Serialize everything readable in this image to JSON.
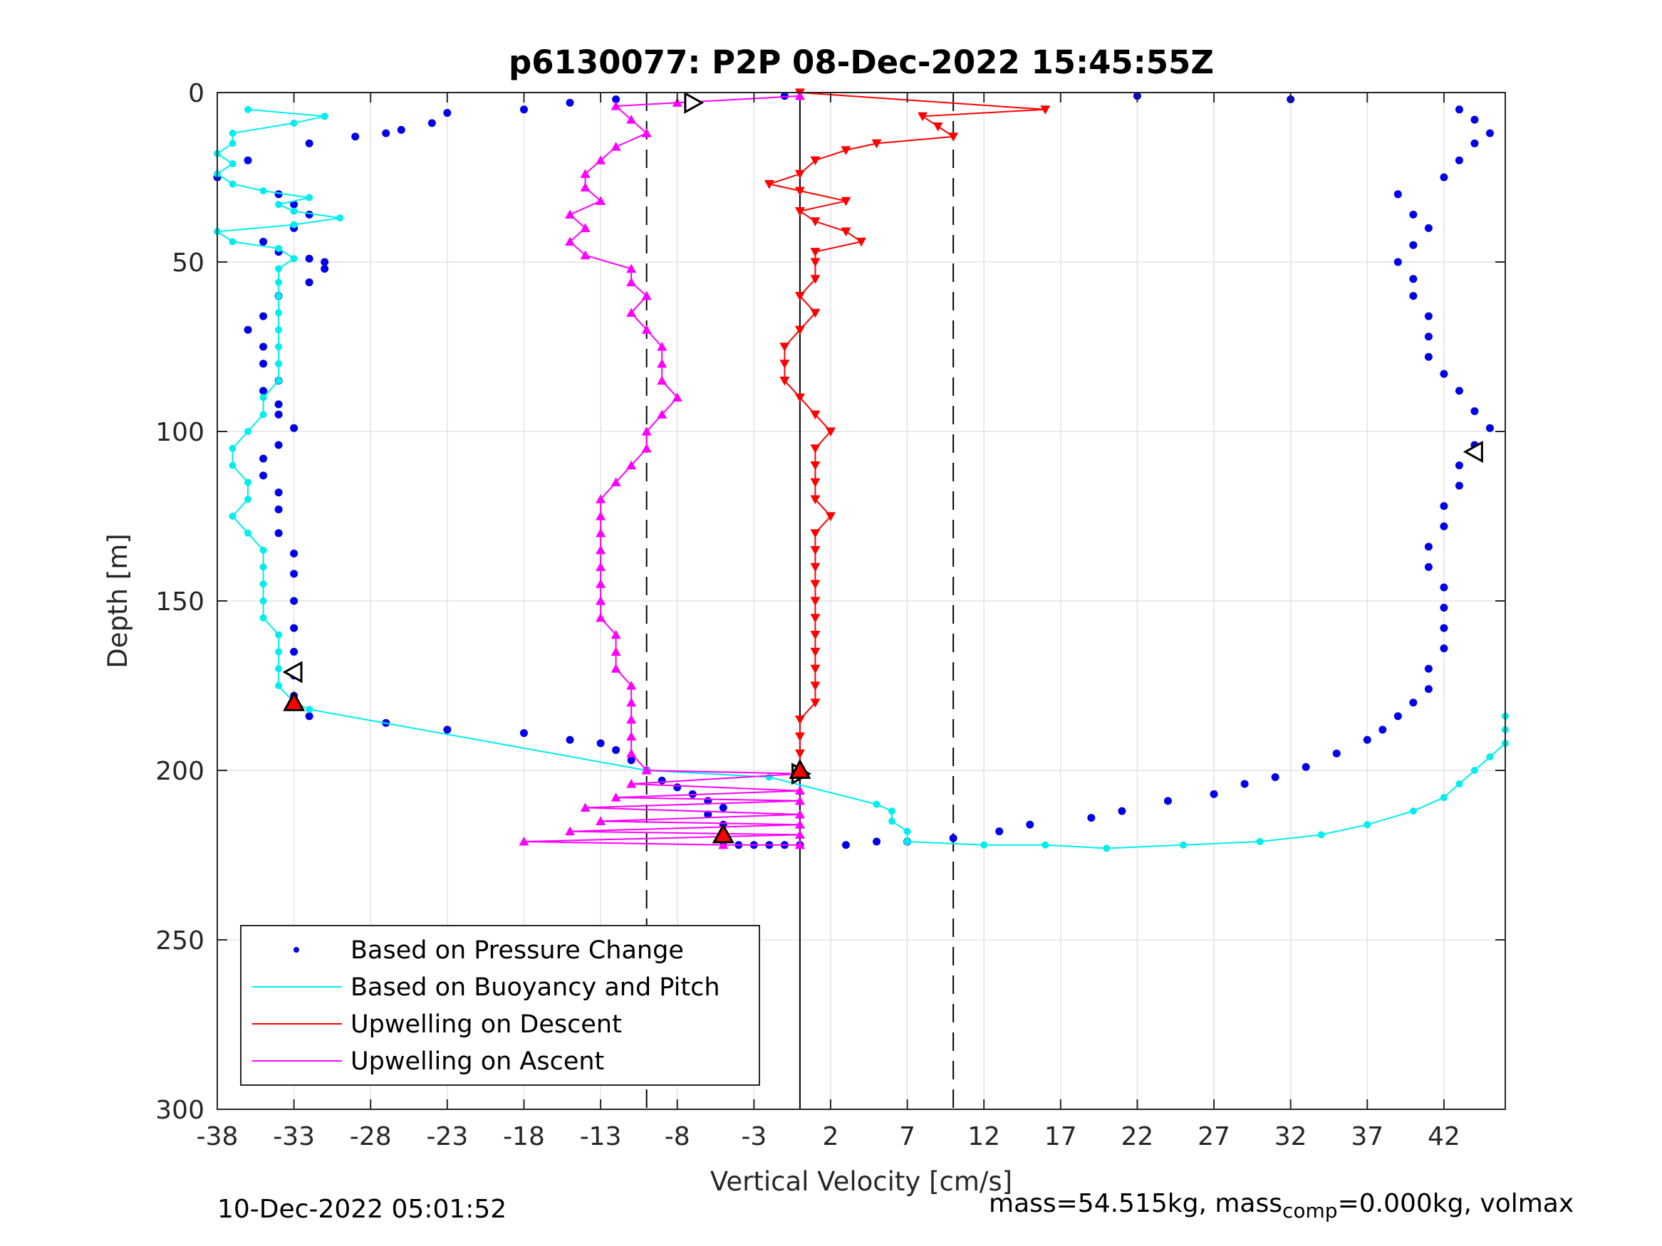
{
  "chart_data": {
    "type": "scatter",
    "title": "p6130077: P2P 08-Dec-2022 15:45:55Z",
    "xlabel": "Vertical Velocity [cm/s]",
    "ylabel": "Depth [m]",
    "xlim": [
      -38,
      46
    ],
    "ylim": [
      0,
      300
    ],
    "y_reversed": true,
    "grid": true,
    "xticks": [
      -38,
      -33,
      -28,
      -23,
      -18,
      -13,
      -8,
      -3,
      2,
      7,
      12,
      17,
      22,
      27,
      32,
      37,
      42
    ],
    "yticks": [
      0,
      50,
      100,
      150,
      200,
      250,
      300
    ],
    "reference_lines": {
      "solid_x": 0,
      "dashed_x": [
        -10,
        10
      ]
    },
    "legend": {
      "placement": "lower-left",
      "entries": [
        "Based on Pressure Change",
        "Based on Buoyancy and Pitch",
        "Upwelling on Descent",
        "Upwelling on Ascent"
      ]
    },
    "colors": {
      "pressure": "#0000e6",
      "buoyancy": "#00eeee",
      "descent": "#ff0000",
      "ascent": "#ff00ff"
    },
    "series": [
      {
        "key": "pressure",
        "style": "dots",
        "points": [
          [
            -15,
            3
          ],
          [
            -18,
            5
          ],
          [
            -23,
            6
          ],
          [
            -24,
            9
          ],
          [
            -26,
            11
          ],
          [
            -27,
            12
          ],
          [
            -29,
            13
          ],
          [
            -32,
            15
          ],
          [
            -36,
            20
          ],
          [
            -38,
            25
          ],
          [
            -34,
            30
          ],
          [
            -33,
            33
          ],
          [
            -32,
            36
          ],
          [
            -33,
            40
          ],
          [
            -35,
            44
          ],
          [
            -34,
            47
          ],
          [
            -32,
            49
          ],
          [
            -31,
            50
          ],
          [
            -31,
            52
          ],
          [
            -32,
            56
          ],
          [
            -34,
            60
          ],
          [
            -35,
            66
          ],
          [
            -36,
            70
          ],
          [
            -35,
            75
          ],
          [
            -35,
            80
          ],
          [
            -34,
            85
          ],
          [
            -35,
            88
          ],
          [
            -34,
            92
          ],
          [
            -34,
            95
          ],
          [
            -33,
            99
          ],
          [
            -34,
            104
          ],
          [
            -35,
            108
          ],
          [
            -35,
            113
          ],
          [
            -34,
            118
          ],
          [
            -34,
            123
          ],
          [
            -34,
            130
          ],
          [
            -33,
            136
          ],
          [
            -33,
            142
          ],
          [
            -33,
            150
          ],
          [
            -33,
            158
          ],
          [
            -33,
            165
          ],
          [
            -33,
            172
          ],
          [
            -33,
            178
          ],
          [
            -32,
            184
          ],
          [
            -27,
            186
          ],
          [
            -23,
            188
          ],
          [
            -18,
            189
          ],
          [
            -15,
            191
          ],
          [
            -13,
            192
          ],
          [
            -12,
            194
          ],
          [
            -11,
            197
          ],
          [
            -10,
            200
          ],
          [
            -9,
            203
          ],
          [
            -8,
            205
          ],
          [
            -7,
            207
          ],
          [
            -6,
            209
          ],
          [
            -5,
            211
          ],
          [
            -6,
            213
          ],
          [
            -5,
            216
          ],
          [
            -5,
            219
          ],
          [
            -5,
            221
          ],
          [
            -4,
            222
          ],
          [
            -3,
            222
          ],
          [
            -2,
            222
          ],
          [
            -1,
            222
          ],
          [
            0,
            222
          ],
          [
            3,
            222
          ],
          [
            5,
            221
          ],
          [
            7,
            221
          ],
          [
            10,
            220
          ],
          [
            13,
            218
          ],
          [
            15,
            216
          ],
          [
            19,
            214
          ],
          [
            21,
            212
          ],
          [
            24,
            209
          ],
          [
            27,
            207
          ],
          [
            29,
            204
          ],
          [
            31,
            202
          ],
          [
            33,
            199
          ],
          [
            35,
            195
          ],
          [
            37,
            191
          ],
          [
            38,
            188
          ],
          [
            39,
            184
          ],
          [
            40,
            180
          ],
          [
            41,
            176
          ],
          [
            41,
            170
          ],
          [
            42,
            164
          ],
          [
            42,
            158
          ],
          [
            42,
            152
          ],
          [
            42,
            146
          ],
          [
            41,
            140
          ],
          [
            41,
            134
          ],
          [
            42,
            128
          ],
          [
            42,
            122
          ],
          [
            43,
            116
          ],
          [
            43,
            110
          ],
          [
            44,
            104
          ],
          [
            45,
            99
          ],
          [
            44,
            94
          ],
          [
            43,
            88
          ],
          [
            42,
            83
          ],
          [
            41,
            78
          ],
          [
            41,
            72
          ],
          [
            41,
            66
          ],
          [
            40,
            60
          ],
          [
            40,
            55
          ],
          [
            39,
            50
          ],
          [
            40,
            45
          ],
          [
            41,
            40
          ],
          [
            40,
            36
          ],
          [
            39,
            30
          ],
          [
            42,
            25
          ],
          [
            43,
            20
          ],
          [
            44,
            15
          ],
          [
            45,
            12
          ],
          [
            44,
            8
          ],
          [
            43,
            5
          ],
          [
            32,
            2
          ],
          [
            22,
            1
          ],
          [
            -12,
            2
          ],
          [
            -1,
            1
          ]
        ]
      },
      {
        "key": "buoyancy",
        "style": "line+dots",
        "points": [
          [
            -36,
            5
          ],
          [
            -31,
            7
          ],
          [
            -33,
            9
          ],
          [
            -37,
            12
          ],
          [
            -37,
            15
          ],
          [
            -38,
            18
          ],
          [
            -37,
            21
          ],
          [
            -38,
            24
          ],
          [
            -37,
            27
          ],
          [
            -35,
            29
          ],
          [
            -32,
            31
          ],
          [
            -34,
            33
          ],
          [
            -33,
            35
          ],
          [
            -30,
            37
          ],
          [
            -33,
            39
          ],
          [
            -38,
            41
          ],
          [
            -37,
            44
          ],
          [
            -34,
            46
          ],
          [
            -33,
            49
          ],
          [
            -34,
            52
          ],
          [
            -34,
            56
          ],
          [
            -34,
            60
          ],
          [
            -34,
            65
          ],
          [
            -34,
            70
          ],
          [
            -34,
            75
          ],
          [
            -34,
            80
          ],
          [
            -34,
            85
          ],
          [
            -35,
            90
          ],
          [
            -35,
            95
          ],
          [
            -36,
            100
          ],
          [
            -37,
            105
          ],
          [
            -37,
            110
          ],
          [
            -36,
            115
          ],
          [
            -36,
            120
          ],
          [
            -37,
            125
          ],
          [
            -36,
            130
          ],
          [
            -35,
            135
          ],
          [
            -35,
            140
          ],
          [
            -35,
            145
          ],
          [
            -35,
            150
          ],
          [
            -35,
            155
          ],
          [
            -34,
            160
          ],
          [
            -34,
            165
          ],
          [
            -34,
            170
          ],
          [
            -34,
            175
          ],
          [
            -33,
            180
          ],
          [
            -32,
            182
          ],
          [
            -10,
            200
          ],
          [
            -2,
            202
          ],
          [
            5,
            210
          ],
          [
            6,
            212
          ],
          [
            6,
            215
          ],
          [
            7,
            218
          ],
          [
            7,
            221
          ],
          [
            12,
            222
          ],
          [
            16,
            222
          ],
          [
            20,
            223
          ],
          [
            25,
            222
          ],
          [
            30,
            221
          ],
          [
            34,
            219
          ],
          [
            37,
            216
          ],
          [
            40,
            212
          ],
          [
            42,
            208
          ],
          [
            43,
            204
          ],
          [
            44,
            200
          ],
          [
            45,
            196
          ],
          [
            46,
            192
          ],
          [
            46,
            188
          ],
          [
            46,
            184
          ]
        ]
      },
      {
        "key": "descent",
        "style": "line+down-triangles",
        "points": [
          [
            0,
            0
          ],
          [
            16,
            5
          ],
          [
            8,
            7
          ],
          [
            9,
            10
          ],
          [
            10,
            13
          ],
          [
            5,
            15
          ],
          [
            3,
            17
          ],
          [
            1,
            20
          ],
          [
            0,
            24
          ],
          [
            -2,
            27
          ],
          [
            0,
            29
          ],
          [
            3,
            32
          ],
          [
            0,
            35
          ],
          [
            1,
            38
          ],
          [
            3,
            41
          ],
          [
            4,
            44
          ],
          [
            1,
            47
          ],
          [
            1,
            50
          ],
          [
            1,
            55
          ],
          [
            0,
            60
          ],
          [
            1,
            65
          ],
          [
            0,
            70
          ],
          [
            -1,
            75
          ],
          [
            -1,
            80
          ],
          [
            -1,
            85
          ],
          [
            0,
            90
          ],
          [
            1,
            95
          ],
          [
            2,
            100
          ],
          [
            1,
            105
          ],
          [
            1,
            110
          ],
          [
            1,
            115
          ],
          [
            1,
            120
          ],
          [
            2,
            125
          ],
          [
            1,
            130
          ],
          [
            1,
            135
          ],
          [
            1,
            140
          ],
          [
            1,
            145
          ],
          [
            1,
            150
          ],
          [
            1,
            155
          ],
          [
            1,
            160
          ],
          [
            1,
            165
          ],
          [
            1,
            170
          ],
          [
            1,
            175
          ],
          [
            1,
            180
          ],
          [
            0,
            185
          ],
          [
            0,
            190
          ],
          [
            0,
            195
          ],
          [
            0,
            200
          ]
        ]
      },
      {
        "key": "ascent",
        "style": "line+up-triangles",
        "points": [
          [
            0,
            1
          ],
          [
            -8,
            3
          ],
          [
            -12,
            4
          ],
          [
            -11,
            8
          ],
          [
            -10,
            12
          ],
          [
            -12,
            16
          ],
          [
            -13,
            20
          ],
          [
            -14,
            24
          ],
          [
            -14,
            28
          ],
          [
            -13,
            32
          ],
          [
            -15,
            36
          ],
          [
            -14,
            40
          ],
          [
            -15,
            44
          ],
          [
            -14,
            48
          ],
          [
            -11,
            52
          ],
          [
            -11,
            56
          ],
          [
            -10,
            60
          ],
          [
            -11,
            65
          ],
          [
            -10,
            70
          ],
          [
            -9,
            75
          ],
          [
            -9,
            80
          ],
          [
            -9,
            85
          ],
          [
            -8,
            90
          ],
          [
            -9,
            95
          ],
          [
            -10,
            100
          ],
          [
            -10,
            105
          ],
          [
            -11,
            110
          ],
          [
            -12,
            115
          ],
          [
            -13,
            120
          ],
          [
            -13,
            125
          ],
          [
            -13,
            130
          ],
          [
            -13,
            135
          ],
          [
            -13,
            140
          ],
          [
            -13,
            145
          ],
          [
            -13,
            150
          ],
          [
            -13,
            155
          ],
          [
            -12,
            160
          ],
          [
            -12,
            165
          ],
          [
            -12,
            170
          ],
          [
            -11,
            175
          ],
          [
            -11,
            180
          ],
          [
            -11,
            185
          ],
          [
            -11,
            190
          ],
          [
            -11,
            195
          ],
          [
            -10,
            200
          ],
          [
            0,
            201
          ],
          [
            -11,
            204
          ],
          [
            0,
            206
          ],
          [
            -12,
            208
          ],
          [
            0,
            209
          ],
          [
            -14,
            211
          ],
          [
            0,
            213
          ],
          [
            -13,
            215
          ],
          [
            0,
            216
          ],
          [
            -15,
            218
          ],
          [
            0,
            219
          ],
          [
            -18,
            221
          ],
          [
            -5,
            222
          ],
          [
            0,
            222
          ]
        ]
      }
    ],
    "markers": [
      {
        "shape": "right-triangle",
        "fill": "#ffffff",
        "x": -7,
        "y": 3
      },
      {
        "shape": "left-triangle",
        "fill": "#ffffff",
        "x": 44,
        "y": 106
      },
      {
        "shape": "left-triangle",
        "fill": "#ffffff",
        "x": -33,
        "y": 171
      },
      {
        "shape": "up-triangle",
        "fill": "#ff0000",
        "x": -33,
        "y": 180
      },
      {
        "shape": "up-triangle",
        "fill": "#ff0000",
        "x": -5,
        "y": 219
      },
      {
        "shape": "right-triangle",
        "fill": "#ffffff",
        "x": 0,
        "y": 201
      },
      {
        "shape": "up-triangle",
        "fill": "#ff0000",
        "x": 0,
        "y": 200
      }
    ]
  },
  "footer": {
    "timestamp": "10-Dec-2022 05:01:52",
    "mass_text": "mass=54.515kg, mass",
    "mass_sub": "comp",
    "mass_rest": "=0.000kg, volmax"
  }
}
